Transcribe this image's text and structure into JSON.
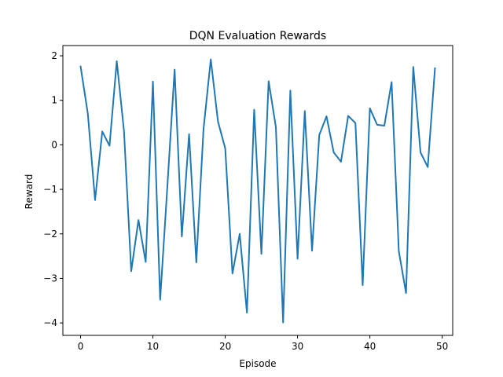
{
  "chart_data": {
    "type": "line",
    "title": "DQN Evaluation Rewards",
    "xlabel": "Episode",
    "ylabel": "Reward",
    "xlim": [
      -2.45,
      51.45
    ],
    "ylim": [
      -4.28,
      2.23
    ],
    "xticks": [
      0,
      10,
      20,
      30,
      40,
      50
    ],
    "yticks": [
      -4,
      -3,
      -2,
      -1,
      0,
      1,
      2
    ],
    "xtick_labels": [
      "0",
      "10",
      "20",
      "30",
      "40",
      "50"
    ],
    "ytick_labels": [
      "−4",
      "−3",
      "−2",
      "−1",
      "0",
      "1",
      "2"
    ],
    "grid": false,
    "series": [
      {
        "color": "#1f77b4",
        "x": [
          0,
          1,
          2,
          3,
          4,
          5,
          6,
          7,
          8,
          9,
          10,
          11,
          12,
          13,
          14,
          15,
          16,
          17,
          18,
          19,
          20,
          21,
          22,
          23,
          24,
          25,
          26,
          27,
          28,
          29,
          30,
          31,
          32,
          33,
          34,
          35,
          36,
          37,
          38,
          39,
          40,
          41,
          42,
          43,
          44,
          45,
          46,
          47,
          48,
          49
        ],
        "values": [
          1.76,
          0.7,
          -1.24,
          0.3,
          -0.02,
          1.88,
          0.31,
          -2.84,
          -1.69,
          -2.63,
          1.42,
          -3.48,
          -0.93,
          1.69,
          -2.06,
          0.24,
          -2.64,
          0.36,
          1.92,
          0.52,
          -0.08,
          -2.89,
          -2.0,
          -3.77,
          0.79,
          -2.45,
          1.43,
          0.4,
          -3.99,
          1.22,
          -2.56,
          0.76,
          -2.38,
          0.22,
          0.64,
          -0.17,
          -0.38,
          0.65,
          0.49,
          -3.15,
          0.82,
          0.45,
          0.43,
          1.41,
          -2.39,
          -3.33,
          1.75,
          -0.17,
          -0.5,
          1.72
        ]
      }
    ]
  }
}
